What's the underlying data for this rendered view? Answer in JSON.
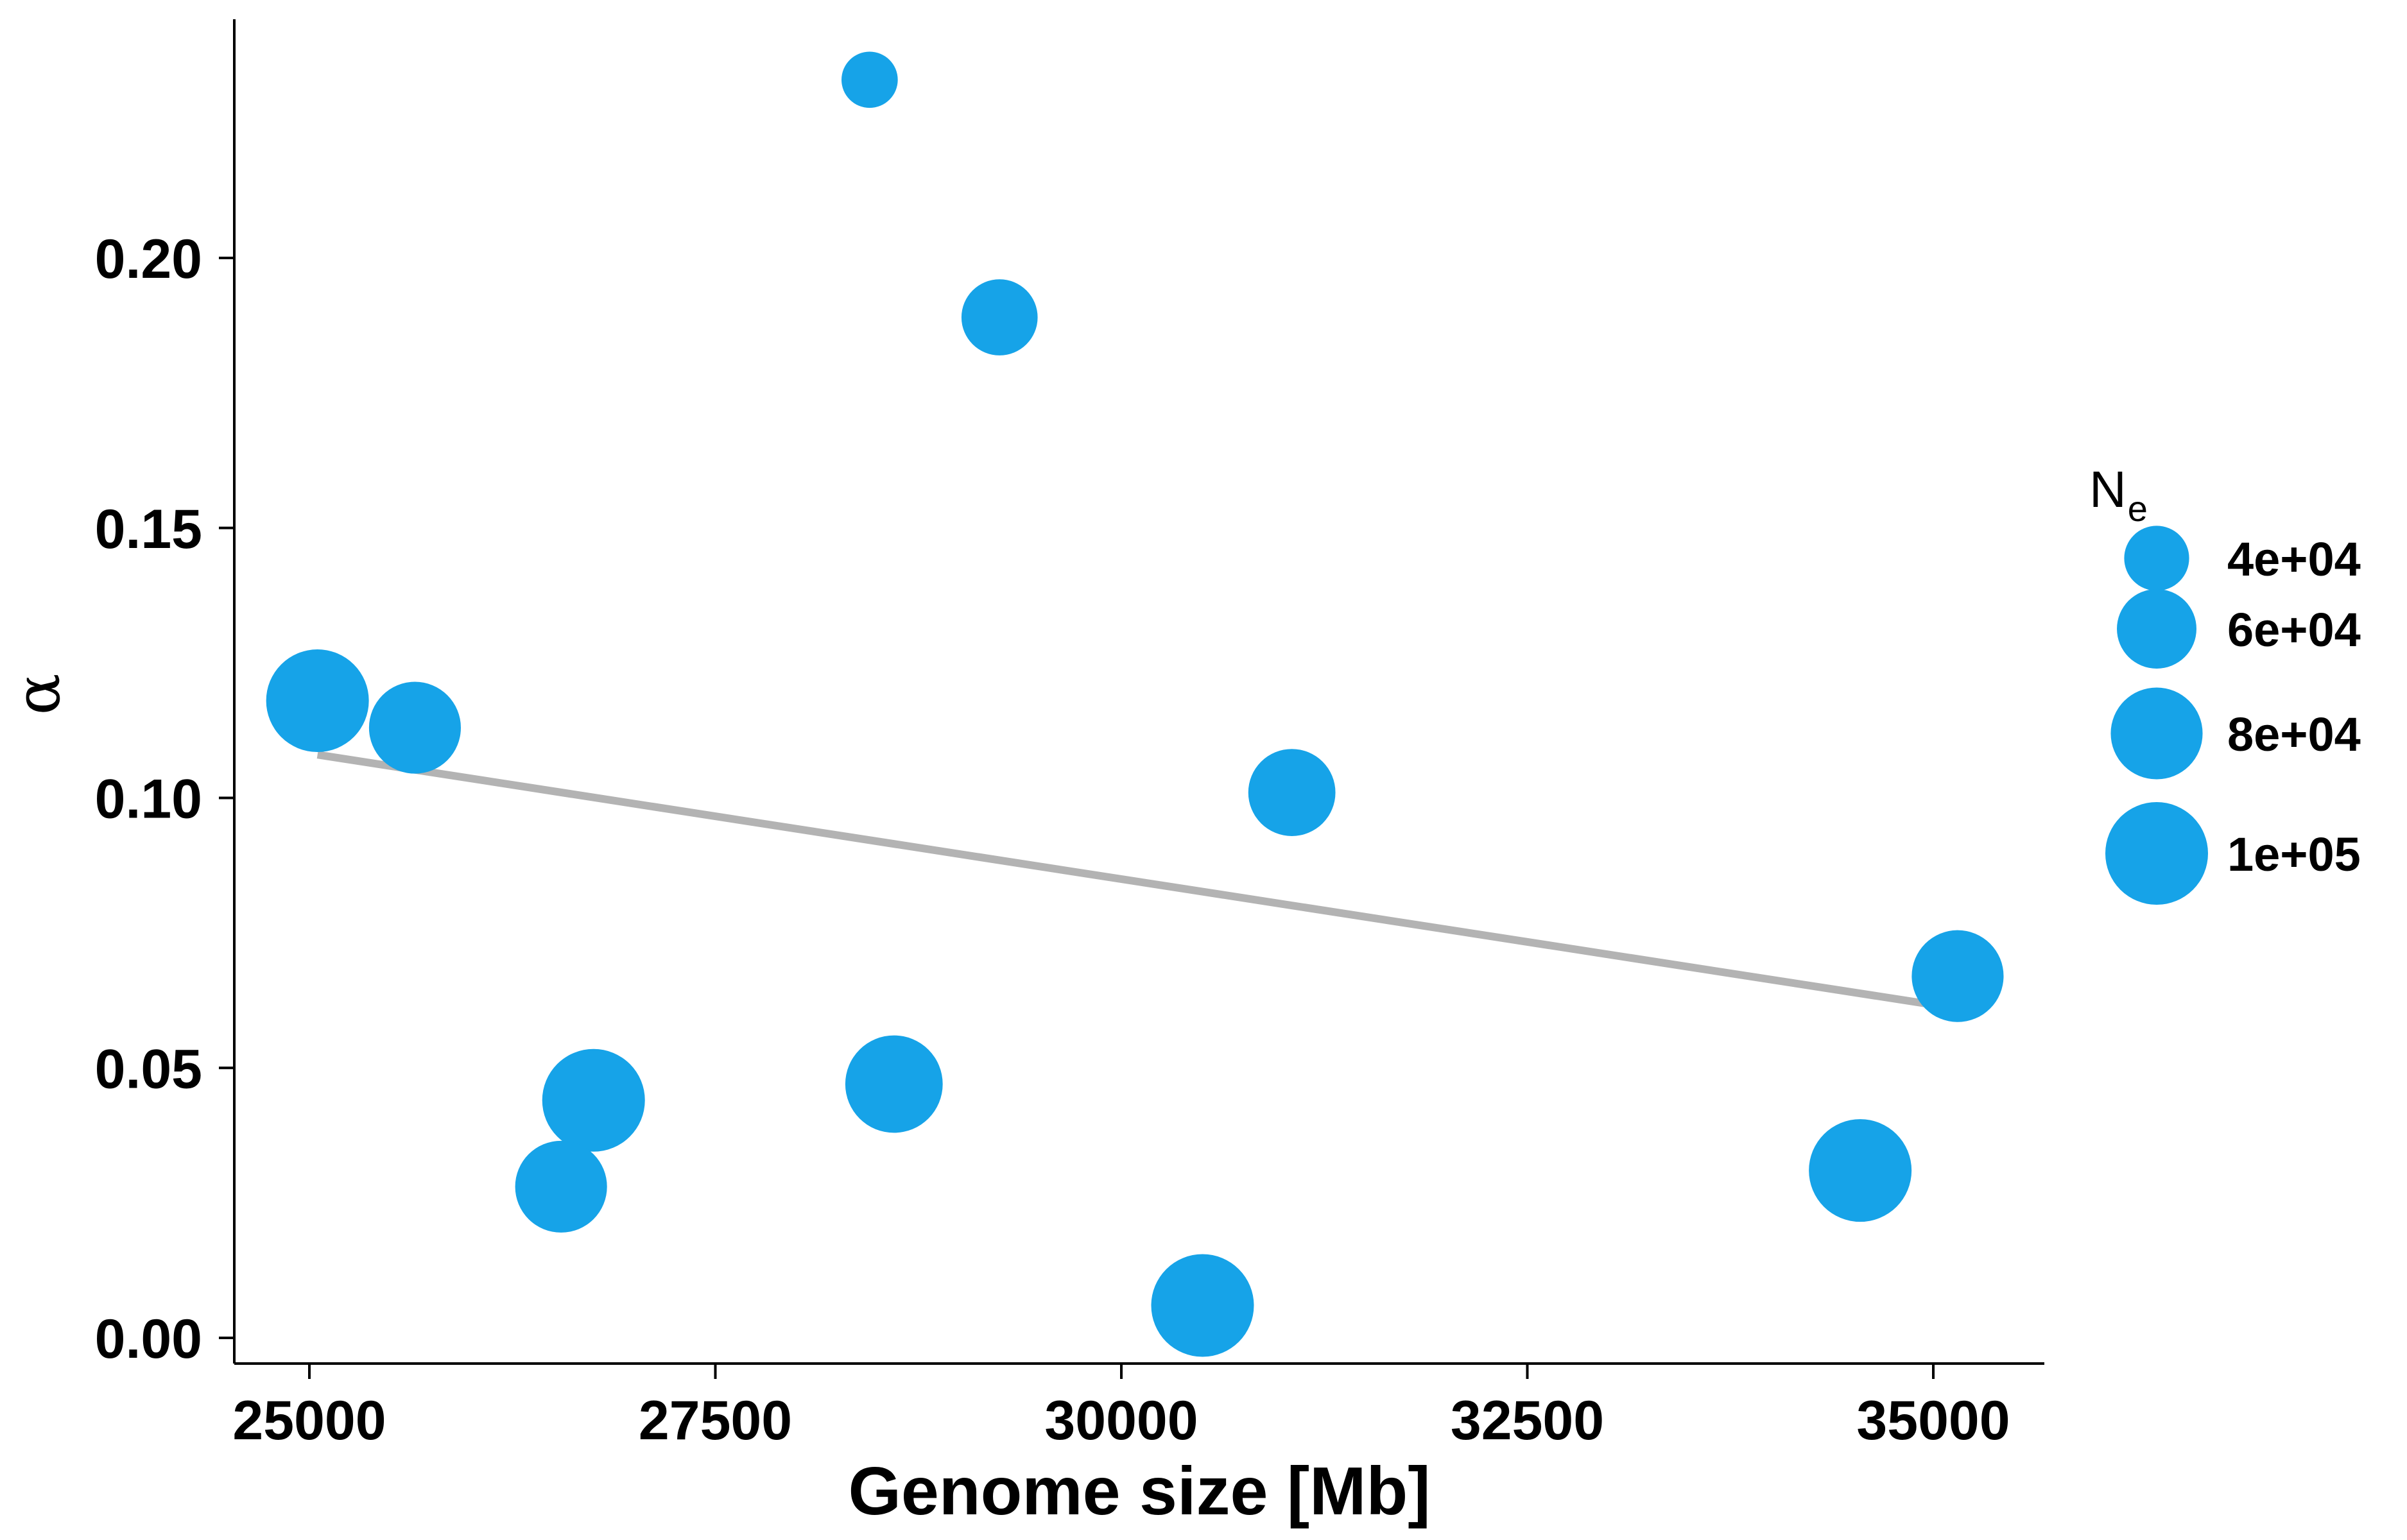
{
  "chart_data": {
    "type": "scatter",
    "title": "",
    "xlabel": "Genome size [Mb]",
    "ylabel": "α",
    "xlim": [
      24500,
      35700
    ],
    "ylim": [
      -0.005,
      0.245
    ],
    "x_ticks": [
      25000,
      27500,
      30000,
      32500,
      35000
    ],
    "x_tick_labels": [
      "25000",
      "27500",
      "30000",
      "32500",
      "35000"
    ],
    "y_ticks": [
      0.0,
      0.05,
      0.1,
      0.15,
      0.2
    ],
    "y_tick_labels": [
      "0.00",
      "0.05",
      "0.10",
      "0.15",
      "0.20"
    ],
    "grid": false,
    "point_color": "#16a3e8",
    "size_variable": {
      "title": "N",
      "title_subscript": "e",
      "legend_values": [
        40000,
        60000,
        80000,
        100000
      ],
      "legend_labels": [
        "4e+04",
        "6e+04",
        "8e+04",
        "1e+05"
      ],
      "legend_position": "right"
    },
    "points": [
      {
        "x": 28450,
        "y": 0.233,
        "size": 30000
      },
      {
        "x": 29250,
        "y": 0.189,
        "size": 55000
      },
      {
        "x": 25050,
        "y": 0.118,
        "size": 100000
      },
      {
        "x": 25650,
        "y": 0.113,
        "size": 80000
      },
      {
        "x": 31050,
        "y": 0.101,
        "size": 72000
      },
      {
        "x": 35150,
        "y": 0.067,
        "size": 80000
      },
      {
        "x": 28600,
        "y": 0.047,
        "size": 90000
      },
      {
        "x": 26750,
        "y": 0.044,
        "size": 100000
      },
      {
        "x": 26550,
        "y": 0.028,
        "size": 80000
      },
      {
        "x": 30500,
        "y": 0.006,
        "size": 100000
      },
      {
        "x": 34550,
        "y": 0.031,
        "size": 100000
      }
    ],
    "trend_line": {
      "x": [
        25050,
        35150
      ],
      "y": [
        0.108,
        0.061
      ],
      "color": "#b3b3b3"
    }
  }
}
